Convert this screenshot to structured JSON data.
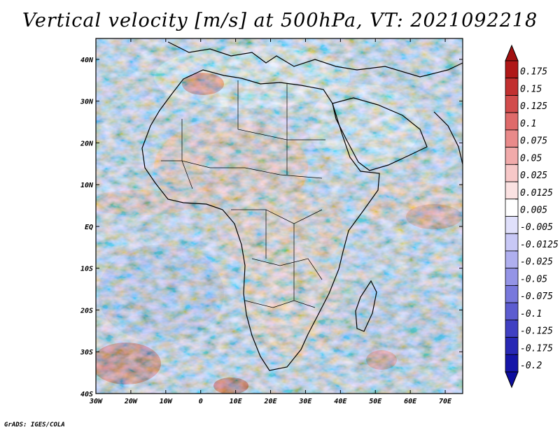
{
  "title": "Vertical velocity [m/s] at 500hPa, VT: 2021092218",
  "credit": "GrADS: IGES/COLA",
  "map": {
    "lon_labels": [
      "30W",
      "20W",
      "10W",
      "0",
      "10E",
      "20E",
      "30E",
      "40E",
      "50E",
      "60E",
      "70E"
    ],
    "lat_labels": [
      "40N",
      "30N",
      "20N",
      "10N",
      "EQ",
      "10S",
      "20S",
      "30S",
      "40S"
    ],
    "lon_range": [
      -30,
      75
    ],
    "lat_range": [
      -40,
      45
    ]
  },
  "colorbar": {
    "labels": [
      "0.175",
      "0.15",
      "0.125",
      "0.1",
      "0.075",
      "0.05",
      "0.025",
      "0.0125",
      "0.005",
      "-0.005",
      "-0.0125",
      "-0.025",
      "-0.05",
      "-0.075",
      "-0.1",
      "-0.125",
      "-0.175",
      "-0.2"
    ],
    "colors": [
      "#b01818",
      "#c23030",
      "#d24c4c",
      "#df6a6a",
      "#e98a8a",
      "#f1aaaa",
      "#f7c8c8",
      "#fbe2e2",
      "#ffffff",
      "#e0e0fb",
      "#c8c8f6",
      "#afafef",
      "#9494e6",
      "#7878dc",
      "#5c5cd0",
      "#4040c3",
      "#2828b5",
      "#1515a8"
    ],
    "top_arrow_color": "#a11010",
    "bottom_arrow_color": "#0d0d9e"
  }
}
